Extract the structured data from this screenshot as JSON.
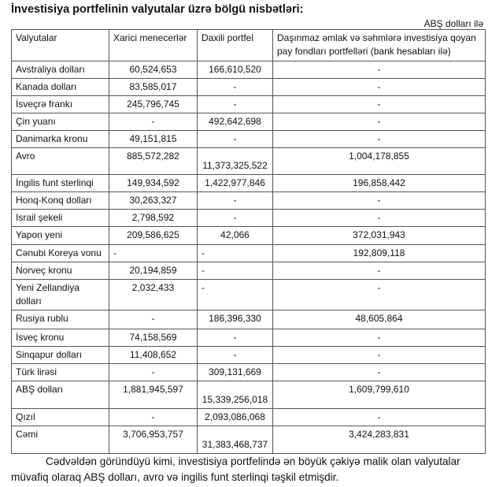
{
  "title": "İnvestisiya portfelinin valyutalar üzrə bölgü nisbətləri:",
  "unit": "ABŞ dolları ilə",
  "table": {
    "headers": [
      "Valyutalar",
      "Xarici menecerlər",
      "Daxili portfel",
      "Daşınmaz əmlak və səhmlərə investisiya qoyan pay fondları portfelləri (bank hesabları ilə)"
    ],
    "rows": [
      [
        "Avstraliya dolları",
        "60,524,653",
        "166,610,520",
        "-"
      ],
      [
        "Kanada dolları",
        "83,585,017",
        "-",
        "-"
      ],
      [
        "İsveçrə frankı",
        "245,796,745",
        "-",
        "-"
      ],
      [
        "Çin yuanı",
        "-",
        "492,642,698",
        "-"
      ],
      [
        "Danimarka kronu",
        "49,151,815",
        "-",
        "-"
      ],
      [
        "Avro",
        "885,572,282",
        "11,373,325,522",
        "1,004,178,855"
      ],
      [
        "İngilis funt sterlinqi",
        "149,934,592",
        "1,422,977,846",
        "196,858,442"
      ],
      [
        "Honq-Konq dolları",
        "30,263,327",
        "-",
        "-"
      ],
      [
        "Israil şekeli",
        "2,798,592",
        "-",
        "-"
      ],
      [
        "Yapon yeni",
        "209,586,625",
        "42,066",
        "372,031,943"
      ],
      [
        "Cənubi Koreya vonu",
        "-",
        "-",
        "192,809,118"
      ],
      [
        "Norveç kronu",
        "20,194,859",
        "-",
        "-"
      ],
      [
        "Yeni Zellandiya dolları",
        "2,032,433",
        "-",
        "-"
      ],
      [
        "Rusiya rublu",
        "-",
        "186,396,330",
        "48,605,864"
      ],
      [
        "İsveç kronu",
        "74,158,569",
        "-",
        "-"
      ],
      [
        "Sinqapur dolları",
        "11,408,652",
        "-",
        "-"
      ],
      [
        "Türk lirəsi",
        "-",
        "309,131,669",
        "-"
      ],
      [
        "ABŞ dolları",
        "1,881,945,597",
        "15,339,256,018",
        "1,609,799,610"
      ],
      [
        "Qızıl",
        "-",
        "2,093,086,068",
        "-"
      ],
      [
        "Cəmi",
        "3,706,953,757",
        "31,383,468,737",
        "3,424,283,831"
      ]
    ]
  },
  "paragraph": "Cədvəldən göründüyü kimi, investisiya portfelində ən böyük çəkiyə malik olan valyutalar müvafiq olaraq ABŞ dolları, avro və ingilis funt sterlinqi təşkil etmişdir."
}
